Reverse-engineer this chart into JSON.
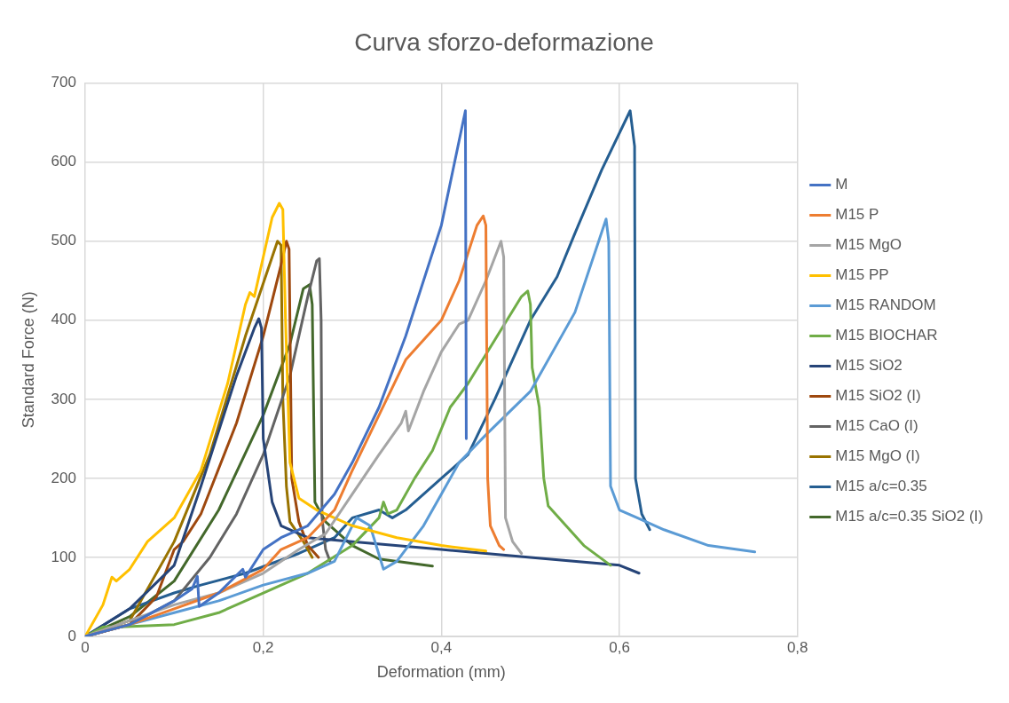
{
  "chart_data": {
    "type": "line",
    "title": "Curva sforzo-deformazione",
    "xlabel": "Deformation (mm)",
    "ylabel": "Standard Force (N)",
    "xlim": [
      0,
      0.8
    ],
    "xticks": [
      0,
      {
        "value": 0.2,
        "label": "0,2"
      },
      {
        "value": 0.4,
        "label": "0,4"
      },
      {
        "value": 0.6,
        "label": "0,6"
      },
      {
        "value": 0.8,
        "label": "0,8"
      }
    ],
    "ylim": [
      0,
      700
    ],
    "yticks": [
      0,
      100,
      200,
      300,
      400,
      500,
      600,
      700
    ],
    "grid": true,
    "legend": "right",
    "marker": "none",
    "line_style": "solid",
    "series": [
      {
        "name": "M",
        "color": "#4472c4",
        "x": [
          0,
          0.05,
          0.1,
          0.12,
          0.126,
          0.128,
          0.15,
          0.177,
          0.18,
          0.2,
          0.22,
          0.25,
          0.28,
          0.3,
          0.33,
          0.36,
          0.4,
          0.427,
          0.428
        ],
        "values": [
          0,
          15,
          45,
          60,
          76,
          38,
          55,
          85,
          75,
          110,
          125,
          140,
          180,
          220,
          290,
          380,
          520,
          665,
          250
        ]
      },
      {
        "name": "M15 P",
        "color": "#ed7d31",
        "x": [
          0,
          0.05,
          0.1,
          0.15,
          0.2,
          0.22,
          0.25,
          0.28,
          0.3,
          0.33,
          0.36,
          0.38,
          0.4,
          0.42,
          0.44,
          0.447,
          0.45,
          0.452,
          0.455,
          0.465,
          0.47
        ],
        "values": [
          0,
          15,
          35,
          55,
          85,
          110,
          125,
          160,
          210,
          280,
          350,
          375,
          400,
          450,
          520,
          532,
          520,
          200,
          140,
          115,
          110
        ]
      },
      {
        "name": "M15 MgO",
        "color": "#a5a5a5",
        "x": [
          0,
          0.05,
          0.1,
          0.15,
          0.2,
          0.24,
          0.27,
          0.3,
          0.33,
          0.355,
          0.36,
          0.363,
          0.38,
          0.4,
          0.42,
          0.43,
          0.45,
          0.467,
          0.47,
          0.472,
          0.48,
          0.49
        ],
        "values": [
          0,
          20,
          40,
          55,
          80,
          110,
          130,
          180,
          230,
          270,
          285,
          260,
          310,
          360,
          395,
          400,
          450,
          500,
          480,
          150,
          120,
          105
        ]
      },
      {
        "name": "M15 PP",
        "color": "#ffc000",
        "x": [
          0,
          0.02,
          0.03,
          0.035,
          0.05,
          0.07,
          0.1,
          0.13,
          0.16,
          0.18,
          0.185,
          0.19,
          0.2,
          0.21,
          0.218,
          0.222,
          0.225,
          0.23,
          0.24,
          0.26,
          0.3,
          0.35,
          0.4,
          0.45
        ],
        "values": [
          0,
          40,
          75,
          70,
          85,
          120,
          150,
          210,
          320,
          420,
          435,
          430,
          480,
          530,
          548,
          540,
          400,
          220,
          175,
          160,
          140,
          125,
          115,
          108
        ]
      },
      {
        "name": "M15 RANDOM",
        "color": "#5b9bd5",
        "x": [
          0,
          0.05,
          0.1,
          0.15,
          0.2,
          0.25,
          0.28,
          0.3,
          0.305,
          0.32,
          0.335,
          0.35,
          0.38,
          0.4,
          0.42,
          0.45,
          0.5,
          0.55,
          0.585,
          0.588,
          0.59,
          0.6,
          0.62,
          0.65,
          0.7,
          0.752
        ],
        "values": [
          0,
          15,
          30,
          45,
          65,
          80,
          95,
          140,
          150,
          140,
          85,
          95,
          140,
          180,
          220,
          255,
          310,
          410,
          528,
          500,
          190,
          160,
          150,
          135,
          115,
          107
        ]
      },
      {
        "name": "M15 BIOCHAR",
        "color": "#70ad47",
        "x": [
          0,
          0.02,
          0.04,
          0.1,
          0.15,
          0.2,
          0.25,
          0.3,
          0.33,
          0.335,
          0.34,
          0.35,
          0.37,
          0.39,
          0.41,
          0.43,
          0.46,
          0.49,
          0.497,
          0.5,
          0.502,
          0.51,
          0.515,
          0.52,
          0.54,
          0.56,
          0.59
        ],
        "values": [
          0,
          12,
          12,
          15,
          30,
          55,
          80,
          115,
          150,
          170,
          155,
          160,
          200,
          235,
          290,
          320,
          375,
          430,
          437,
          420,
          340,
          290,
          200,
          165,
          140,
          115,
          90
        ]
      },
      {
        "name": "M15 SiO2",
        "color": "#264478",
        "x": [
          0,
          0.05,
          0.1,
          0.13,
          0.17,
          0.19,
          0.195,
          0.198,
          0.2,
          0.21,
          0.22,
          0.25,
          0.3,
          0.4,
          0.5,
          0.6,
          0.622
        ],
        "values": [
          0,
          35,
          90,
          190,
          330,
          390,
          402,
          390,
          250,
          170,
          140,
          125,
          120,
          110,
          100,
          90,
          80
        ]
      },
      {
        "name": "M15 SiO2 (I)",
        "color": "#9e480e",
        "x": [
          0,
          0.05,
          0.08,
          0.1,
          0.11,
          0.13,
          0.17,
          0.2,
          0.22,
          0.226,
          0.229,
          0.232,
          0.24,
          0.25,
          0.262
        ],
        "values": [
          0,
          15,
          50,
          110,
          120,
          155,
          270,
          380,
          470,
          500,
          490,
          200,
          145,
          115,
          100
        ]
      },
      {
        "name": "M15 CaO (I)",
        "color": "#636363",
        "x": [
          0,
          0.05,
          0.1,
          0.14,
          0.17,
          0.2,
          0.23,
          0.25,
          0.26,
          0.263,
          0.265,
          0.266,
          0.27,
          0.275
        ],
        "values": [
          0,
          15,
          45,
          100,
          155,
          230,
          330,
          430,
          475,
          478,
          400,
          150,
          110,
          95
        ]
      },
      {
        "name": "M15 MgO (I)",
        "color": "#997300",
        "x": [
          0,
          0.05,
          0.1,
          0.14,
          0.18,
          0.21,
          0.216,
          0.22,
          0.222,
          0.226,
          0.23,
          0.245,
          0.255
        ],
        "values": [
          0,
          20,
          120,
          230,
          380,
          480,
          500,
          495,
          300,
          190,
          145,
          120,
          100
        ]
      },
      {
        "name": "M15 a/c=0.35",
        "color": "#255e91",
        "x": [
          0,
          0.05,
          0.1,
          0.13,
          0.18,
          0.24,
          0.28,
          0.3,
          0.33,
          0.345,
          0.36,
          0.4,
          0.43,
          0.46,
          0.5,
          0.53,
          0.55,
          0.58,
          0.612,
          0.617,
          0.618,
          0.625,
          0.634
        ],
        "values": [
          0,
          35,
          55,
          65,
          80,
          105,
          125,
          150,
          160,
          150,
          160,
          200,
          230,
          300,
          400,
          455,
          510,
          590,
          665,
          620,
          200,
          155,
          135
        ]
      },
      {
        "name": "M15 a/c=0.35 SiO2 (I)",
        "color": "#43682b",
        "x": [
          0,
          0.05,
          0.1,
          0.15,
          0.2,
          0.23,
          0.245,
          0.252,
          0.255,
          0.258,
          0.27,
          0.3,
          0.33,
          0.39
        ],
        "values": [
          0,
          25,
          70,
          160,
          280,
          370,
          440,
          445,
          420,
          170,
          145,
          115,
          98,
          89
        ]
      }
    ]
  }
}
